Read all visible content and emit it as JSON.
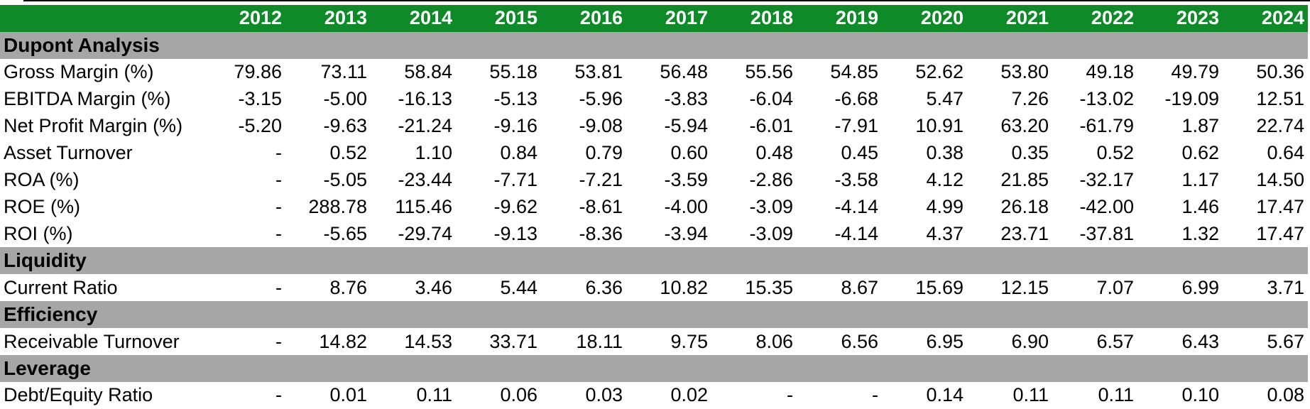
{
  "colors": {
    "header_green": "#0E8A28",
    "section_gray": "#A6A6A6",
    "header_text": "#FFFFFF",
    "body_text": "#000000"
  },
  "chart_data": {
    "type": "table",
    "columns": [
      "2012",
      "2013",
      "2014",
      "2015",
      "2016",
      "2017",
      "2018",
      "2019",
      "2020",
      "2021",
      "2022",
      "2023",
      "2024"
    ],
    "sections": [
      {
        "title": "Dupont Analysis",
        "rows": [
          {
            "label": "Gross Margin (%)",
            "values": [
              "79.86",
              "73.11",
              "58.84",
              "55.18",
              "53.81",
              "56.48",
              "55.56",
              "54.85",
              "52.62",
              "53.80",
              "49.18",
              "49.79",
              "50.36"
            ]
          },
          {
            "label": "EBITDA Margin (%)",
            "values": [
              "-3.15",
              "-5.00",
              "-16.13",
              "-5.13",
              "-5.96",
              "-3.83",
              "-6.04",
              "-6.68",
              "5.47",
              "7.26",
              "-13.02",
              "-19.09",
              "12.51"
            ]
          },
          {
            "label": "Net Profit Margin (%)",
            "values": [
              "-5.20",
              "-9.63",
              "-21.24",
              "-9.16",
              "-9.08",
              "-5.94",
              "-6.01",
              "-7.91",
              "10.91",
              "63.20",
              "-61.79",
              "1.87",
              "22.74"
            ]
          },
          {
            "label": "Asset Turnover",
            "values": [
              "-",
              "0.52",
              "1.10",
              "0.84",
              "0.79",
              "0.60",
              "0.48",
              "0.45",
              "0.38",
              "0.35",
              "0.52",
              "0.62",
              "0.64"
            ]
          },
          {
            "label": "ROA (%)",
            "values": [
              "-",
              "-5.05",
              "-23.44",
              "-7.71",
              "-7.21",
              "-3.59",
              "-2.86",
              "-3.58",
              "4.12",
              "21.85",
              "-32.17",
              "1.17",
              "14.50"
            ]
          },
          {
            "label": "ROE (%)",
            "values": [
              "-",
              "288.78",
              "115.46",
              "-9.62",
              "-8.61",
              "-4.00",
              "-3.09",
              "-4.14",
              "4.99",
              "26.18",
              "-42.00",
              "1.46",
              "17.47"
            ]
          },
          {
            "label": "ROI (%)",
            "values": [
              "-",
              "-5.65",
              "-29.74",
              "-9.13",
              "-8.36",
              "-3.94",
              "-3.09",
              "-4.14",
              "4.37",
              "23.71",
              "-37.81",
              "1.32",
              "17.47"
            ]
          }
        ]
      },
      {
        "title": "Liquidity",
        "rows": [
          {
            "label": "Current Ratio",
            "values": [
              "-",
              "8.76",
              "3.46",
              "5.44",
              "6.36",
              "10.82",
              "15.35",
              "8.67",
              "15.69",
              "12.15",
              "7.07",
              "6.99",
              "3.71"
            ]
          }
        ]
      },
      {
        "title": "Efficiency",
        "rows": [
          {
            "label": "Receivable Turnover",
            "values": [
              "-",
              "14.82",
              "14.53",
              "33.71",
              "18.11",
              "9.75",
              "8.06",
              "6.56",
              "6.95",
              "6.90",
              "6.57",
              "6.43",
              "5.67"
            ]
          }
        ]
      },
      {
        "title": "Leverage",
        "rows": [
          {
            "label": "Debt/Equity Ratio",
            "values": [
              "-",
              "0.01",
              "0.11",
              "0.06",
              "0.03",
              "0.02",
              "-",
              "-",
              "0.14",
              "0.11",
              "0.11",
              "0.10",
              "0.08"
            ]
          }
        ]
      }
    ]
  }
}
